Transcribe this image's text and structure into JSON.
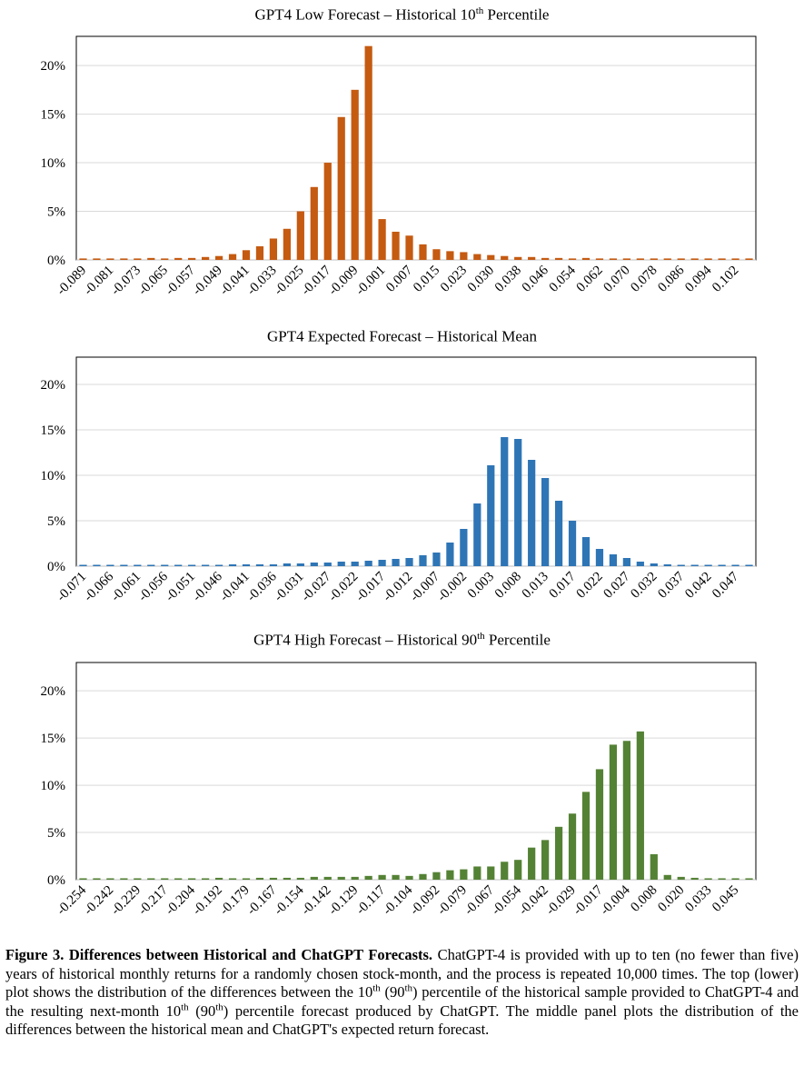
{
  "caption": {
    "label": "Figure 3. Differences between Historical and ChatGPT Forecasts.",
    "text_a": " ChatGPT-4 is provided with up to ten (no fewer than five) years of historical monthly returns for a randomly chosen stock-month, and the process is repeated 10,000 times. The top (lower) plot shows the distribution of the differences between the 10",
    "sup_a": "th",
    "text_b": " (90",
    "sup_b": "th",
    "text_c": ") percentile of the historical sample provided to ChatGPT-4 and the resulting next-month 10",
    "sup_c": "th",
    "text_d": " (90",
    "sup_d": "th",
    "text_e": ") percentile forecast produced by ChatGPT. The middle panel plots the distribution of the differences between the historical mean and ChatGPT's expected return forecast."
  },
  "chart_data": [
    {
      "type": "bar",
      "title_pre": "GPT4 Low Forecast – Historical 10",
      "title_sup": "th",
      "title_post": " Percentile",
      "color": "#c55a11",
      "ylim": [
        0,
        22
      ],
      "yticks": [
        0,
        5,
        10,
        15,
        20
      ],
      "ytick_labels": [
        "0%",
        "5%",
        "10%",
        "15%",
        "20%"
      ],
      "tick_labels": [
        "-0.089",
        "-0.081",
        "-0.073",
        "-0.065",
        "-0.057",
        "-0.049",
        "-0.041",
        "-0.033",
        "-0.025",
        "-0.017",
        "-0.009",
        "-0.001",
        "0.007",
        "0.015",
        "0.023",
        "0.030",
        "0.038",
        "0.046",
        "0.054",
        "0.062",
        "0.070",
        "0.078",
        "0.086",
        "0.094",
        "0.102"
      ],
      "values": [
        0.1,
        0,
        0.1,
        0.1,
        0.1,
        0.2,
        0.1,
        0.2,
        0.2,
        0.3,
        0.4,
        0.6,
        1.0,
        1.4,
        2.2,
        3.2,
        5.0,
        7.5,
        10.0,
        14.7,
        17.5,
        22.0,
        4.2,
        2.9,
        2.5,
        1.6,
        1.1,
        0.9,
        0.8,
        0.6,
        0.5,
        0.4,
        0.3,
        0.3,
        0.2,
        0.2,
        0.1,
        0.2,
        0.1,
        0.1,
        0.1,
        0,
        0.1,
        0.1,
        0.1,
        0.1,
        0,
        0,
        0,
        0.1
      ],
      "grid": true
    },
    {
      "type": "bar",
      "title_pre": "GPT4 Expected Forecast – Historical Mean",
      "title_sup": "",
      "title_post": "",
      "color": "#2e75b6",
      "ylim": [
        0,
        22
      ],
      "yticks": [
        0,
        5,
        10,
        15,
        20
      ],
      "ytick_labels": [
        "0%",
        "5%",
        "10%",
        "15%",
        "20%"
      ],
      "tick_labels": [
        "-0.071",
        "-0.066",
        "-0.061",
        "-0.056",
        "-0.051",
        "-0.046",
        "-0.041",
        "-0.036",
        "-0.031",
        "-0.027",
        "-0.022",
        "-0.017",
        "-0.012",
        "-0.007",
        "-0.002",
        "0.003",
        "0.008",
        "0.013",
        "0.017",
        "0.022",
        "0.027",
        "0.032",
        "0.037",
        "0.042",
        "0.047"
      ],
      "values": [
        0.1,
        0.1,
        0.1,
        0.1,
        0,
        0.1,
        0.1,
        0.1,
        0.1,
        0.1,
        0.1,
        0.2,
        0.2,
        0.2,
        0.2,
        0.3,
        0.3,
        0.4,
        0.4,
        0.5,
        0.5,
        0.6,
        0.7,
        0.8,
        0.9,
        1.2,
        1.5,
        2.6,
        4.1,
        6.9,
        11.1,
        14.2,
        14.0,
        11.7,
        9.7,
        7.2,
        5.0,
        3.2,
        1.9,
        1.3,
        0.9,
        0.5,
        0.3,
        0.2,
        0.1,
        0.1,
        0,
        0,
        0,
        0.1
      ],
      "grid": true
    },
    {
      "type": "bar",
      "title_pre": "GPT4 High Forecast – Historical 90",
      "title_sup": "th",
      "title_post": " Percentile",
      "color": "#548235",
      "ylim": [
        0,
        22
      ],
      "yticks": [
        0,
        5,
        10,
        15,
        20
      ],
      "ytick_labels": [
        "0%",
        "5%",
        "10%",
        "15%",
        "20%"
      ],
      "tick_labels": [
        "-0.254",
        "-0.242",
        "-0.229",
        "-0.217",
        "-0.204",
        "-0.192",
        "-0.179",
        "-0.167",
        "-0.154",
        "-0.142",
        "-0.129",
        "-0.117",
        "-0.104",
        "-0.092",
        "-0.079",
        "-0.067",
        "-0.054",
        "-0.042",
        "-0.029",
        "-0.017",
        "-0.004",
        "0.008",
        "0.020",
        "0.033",
        "0.045"
      ],
      "values": [
        0.1,
        0,
        0.1,
        0.1,
        0,
        0.1,
        0.1,
        0.1,
        0.1,
        0.1,
        0.2,
        0.1,
        0.1,
        0.2,
        0.2,
        0.2,
        0.2,
        0.3,
        0.3,
        0.3,
        0.3,
        0.4,
        0.5,
        0.5,
        0.4,
        0.6,
        0.8,
        1.0,
        1.1,
        1.4,
        1.4,
        1.9,
        2.1,
        3.4,
        4.2,
        5.6,
        7.0,
        9.3,
        11.7,
        14.3,
        14.7,
        15.7,
        2.7,
        0.5,
        0.3,
        0.2,
        0,
        0.1,
        0,
        0.1
      ],
      "grid": true
    }
  ]
}
